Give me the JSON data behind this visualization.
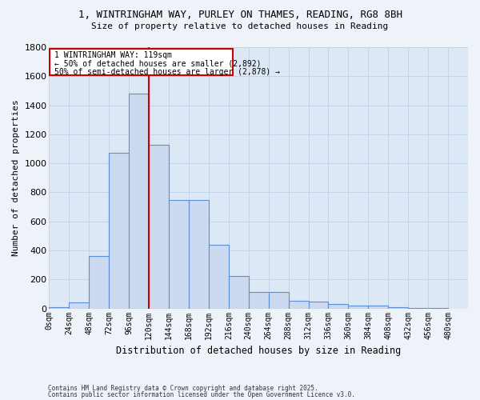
{
  "title_line1": "1, WINTRINGHAM WAY, PURLEY ON THAMES, READING, RG8 8BH",
  "title_line2": "Size of property relative to detached houses in Reading",
  "xlabel": "Distribution of detached houses by size in Reading",
  "ylabel": "Number of detached properties",
  "bin_labels": [
    "0sqm",
    "24sqm",
    "48sqm",
    "72sqm",
    "96sqm",
    "120sqm",
    "144sqm",
    "168sqm",
    "192sqm",
    "216sqm",
    "240sqm",
    "264sqm",
    "288sqm",
    "312sqm",
    "336sqm",
    "360sqm",
    "384sqm",
    "408sqm",
    "432sqm",
    "456sqm",
    "480sqm"
  ],
  "bin_left_edges": [
    0,
    24,
    48,
    72,
    96,
    120,
    144,
    168,
    192,
    216,
    240,
    264,
    288,
    312,
    336,
    360,
    384,
    408,
    432,
    456,
    480
  ],
  "bar_heights": [
    10,
    40,
    360,
    1070,
    1480,
    1130,
    750,
    750,
    440,
    225,
    115,
    115,
    55,
    45,
    30,
    20,
    20,
    8,
    5,
    5
  ],
  "bar_color": "#ccdaf0",
  "bar_edge_color": "#5b8dd9",
  "property_line_x": 120,
  "annotation_text_line1": "1 WINTRINGHAM WAY: 119sqm",
  "annotation_text_line2": "← 50% of detached houses are smaller (2,892)",
  "annotation_text_line3": "50% of semi-detached houses are larger (2,878) →",
  "annotation_box_facecolor": "#ffffff",
  "annotation_border_color": "#cc0000",
  "ylim": [
    0,
    1800
  ],
  "yticks": [
    0,
    200,
    400,
    600,
    800,
    1000,
    1200,
    1400,
    1600,
    1800
  ],
  "grid_color": "#c0cfe8",
  "plot_bg_color": "#dce8f5",
  "fig_bg_color": "#eef3fa",
  "footer_line1": "Contains HM Land Registry data © Crown copyright and database right 2025.",
  "footer_line2": "Contains public sector information licensed under the Open Government Licence v3.0."
}
